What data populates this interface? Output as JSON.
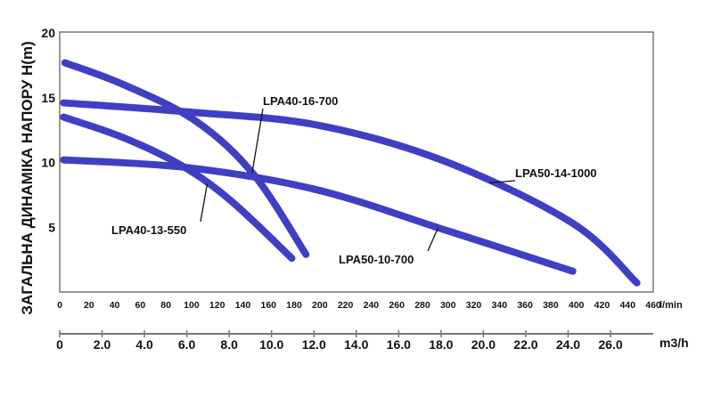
{
  "chart_data": {
    "type": "line",
    "title": "",
    "ylabel": "ЗАГАЛЬНА ДИНАМІКА НАПОРУ H(m)",
    "xlabel": "l/min",
    "x2label": "m3/h",
    "xlim": [
      0,
      460
    ],
    "ylim": [
      0,
      20
    ],
    "x2lim": [
      0,
      27.6
    ],
    "grid": false,
    "yticks": [
      "5",
      "10",
      "15",
      "20"
    ],
    "yticks_values": [
      5,
      10,
      15,
      20
    ],
    "xticks": [
      "0",
      "20",
      "40",
      "60",
      "80",
      "100",
      "120",
      "140",
      "160",
      "180",
      "200",
      "220",
      "240",
      "260",
      "280",
      "300",
      "320",
      "340",
      "360",
      "380",
      "400",
      "420",
      "440",
      "460"
    ],
    "x2ticks": [
      "0",
      "2.0",
      "4.0",
      "6.0",
      "8.0",
      "10.0",
      "12.0",
      "14.0",
      "16.0",
      "18.0",
      "20.0",
      "22.0",
      "24.0",
      "26.0"
    ],
    "line_color": "#3f3fc4",
    "series": [
      {
        "name": "LPA40-16-700",
        "x": [
          4,
          50,
          106,
          151,
          192
        ],
        "y": [
          17.7,
          16.0,
          13.2,
          9.1,
          2.9
        ]
      },
      {
        "name": "LPA40-13-550",
        "x": [
          3,
          50,
          96,
          134,
          181
        ],
        "y": [
          13.5,
          11.9,
          9.7,
          7.0,
          2.6
        ]
      },
      {
        "name": "LPA50-14-1000",
        "x": [
          3,
          100,
          200,
          300,
          400,
          450
        ],
        "y": [
          14.6,
          13.9,
          12.9,
          10.1,
          5.3,
          0.7
        ]
      },
      {
        "name": "LPA50-10-700",
        "x": [
          3,
          100,
          200,
          300,
          400
        ],
        "y": [
          10.2,
          9.6,
          7.9,
          4.8,
          1.6
        ]
      }
    ],
    "annotations": [
      {
        "label": "LPA40-16-700",
        "target": "LPA40-16-700",
        "at": 150
      },
      {
        "label": "LPA40-13-550",
        "target": "LPA40-13-550",
        "at": 115
      },
      {
        "label": "LPA50-14-1000",
        "target": "LPA50-14-1000",
        "at": 335
      },
      {
        "label": "LPA50-10-700",
        "target": "LPA50-10-700",
        "at": 295
      }
    ]
  }
}
